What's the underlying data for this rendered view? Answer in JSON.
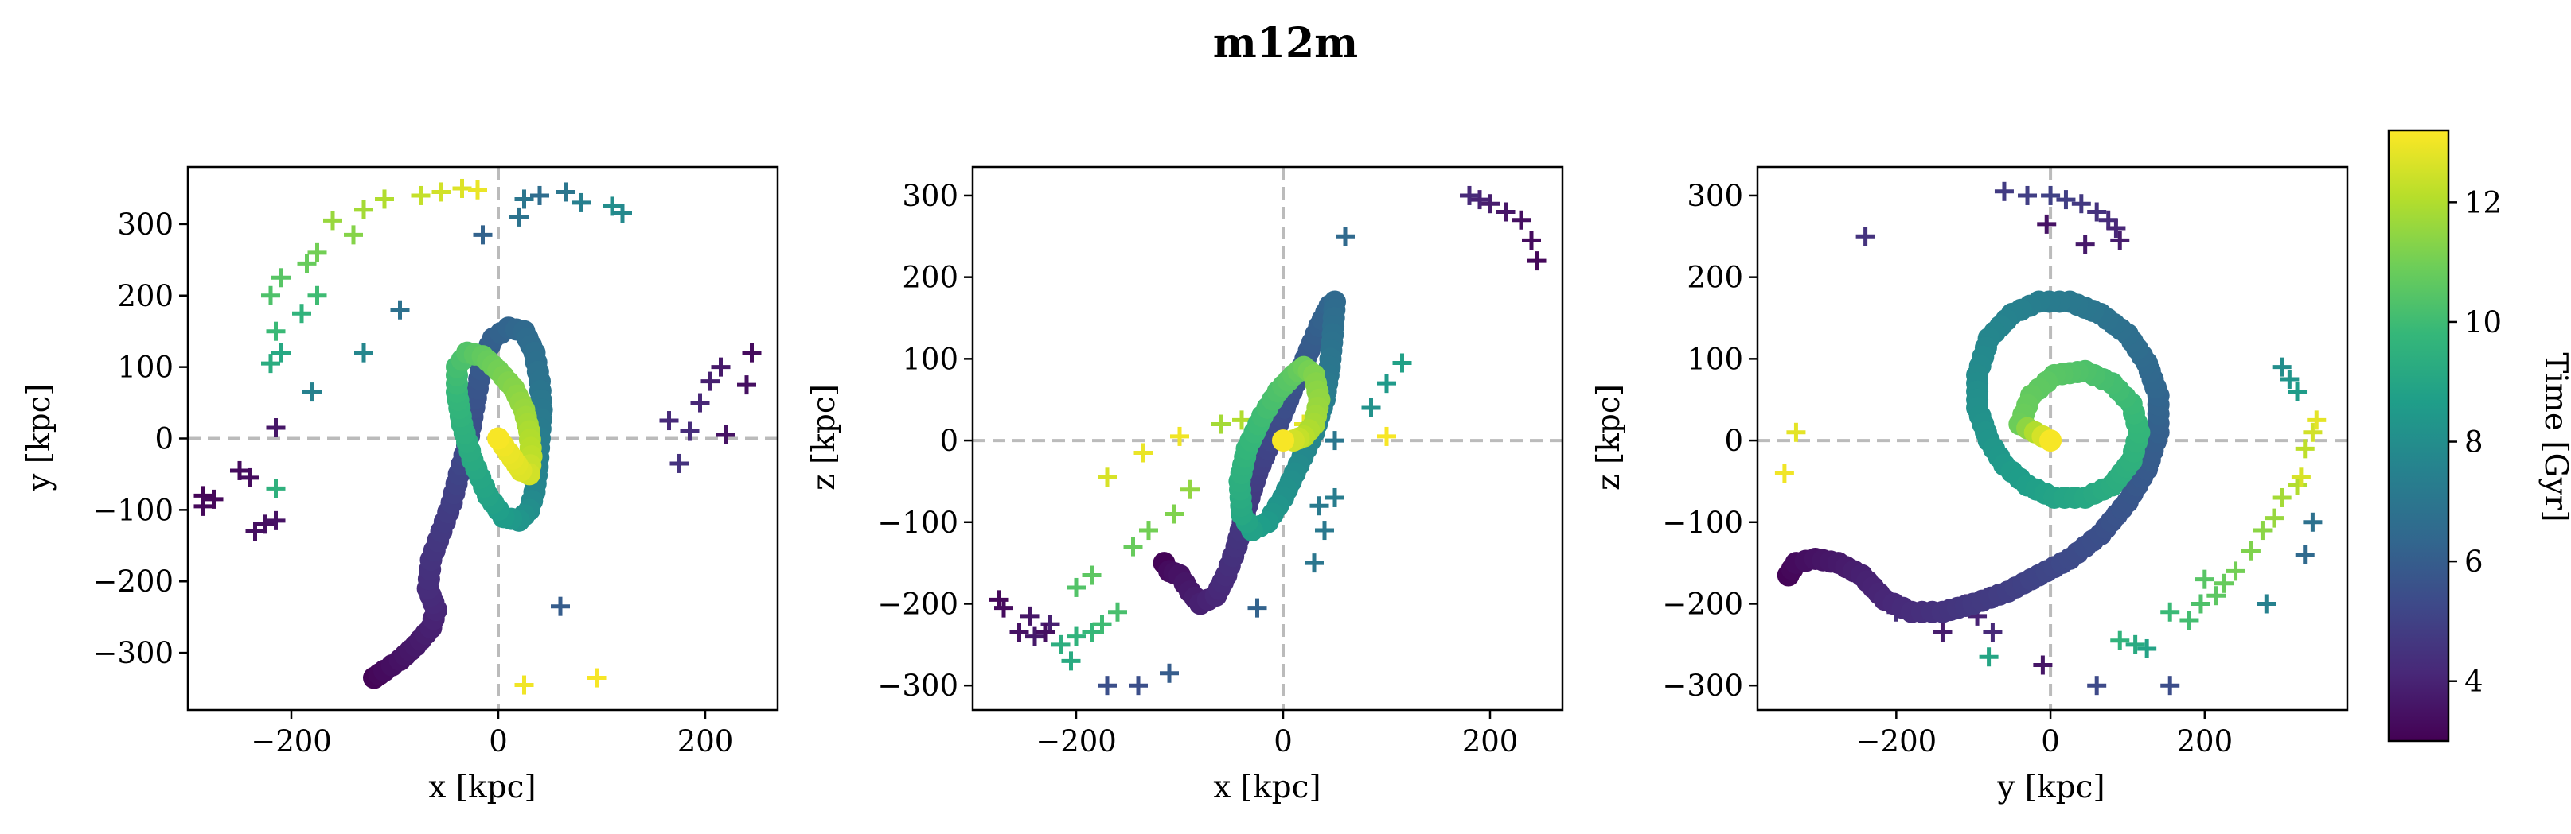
{
  "title": "m12m",
  "colors": {
    "viridis": [
      "#440154",
      "#482878",
      "#3e4989",
      "#31688e",
      "#26828e",
      "#1f9e89",
      "#35b779",
      "#6ece58",
      "#b5de2b",
      "#fde725"
    ],
    "reference_line": "#bbbbbb",
    "axes": "#000000"
  },
  "colorbar": {
    "label": "Time [Gyr]",
    "min": 3.0,
    "max": 13.2,
    "ticks": [
      "4",
      "6",
      "8",
      "10",
      "12"
    ]
  },
  "chart_data": [
    {
      "type": "scatter",
      "panel": "x-y",
      "xlabel": "x [kpc]",
      "ylabel": "y [kpc]",
      "xlim": [
        -300,
        270
      ],
      "ylim": [
        -380,
        380
      ],
      "xticks": [
        "−200",
        "0",
        "200"
      ],
      "yticks": [
        "−300",
        "−200",
        "−100",
        "0",
        "100",
        "200",
        "300"
      ],
      "orbit": [
        [
          -120,
          -335,
          3.1
        ],
        [
          -110,
          -325,
          3.3
        ],
        [
          -95,
          -310,
          3.5
        ],
        [
          -80,
          -290,
          3.7
        ],
        [
          -65,
          -265,
          3.9
        ],
        [
          -60,
          -240,
          4.1
        ],
        [
          -68,
          -210,
          4.3
        ],
        [
          -65,
          -170,
          4.5
        ],
        [
          -55,
          -130,
          4.7
        ],
        [
          -45,
          -90,
          4.9
        ],
        [
          -38,
          -50,
          5.1
        ],
        [
          -30,
          -10,
          5.3
        ],
        [
          -25,
          30,
          5.5
        ],
        [
          -20,
          70,
          5.7
        ],
        [
          -15,
          110,
          5.9
        ],
        [
          -5,
          140,
          6.1
        ],
        [
          10,
          155,
          6.3
        ],
        [
          25,
          150,
          6.5
        ],
        [
          35,
          120,
          6.7
        ],
        [
          40,
          80,
          6.9
        ],
        [
          42,
          40,
          7.1
        ],
        [
          40,
          0,
          7.3
        ],
        [
          38,
          -40,
          7.5
        ],
        [
          35,
          -75,
          7.7
        ],
        [
          30,
          -100,
          8.0
        ],
        [
          20,
          -115,
          8.3
        ],
        [
          5,
          -110,
          8.6
        ],
        [
          -10,
          -80,
          8.9
        ],
        [
          -25,
          -30,
          9.2
        ],
        [
          -35,
          20,
          9.5
        ],
        [
          -40,
          65,
          9.8
        ],
        [
          -40,
          100,
          10.1
        ],
        [
          -30,
          120,
          10.4
        ],
        [
          -15,
          115,
          10.7
        ],
        [
          0,
          95,
          11.0
        ],
        [
          15,
          70,
          11.3
        ],
        [
          25,
          40,
          11.6
        ],
        [
          30,
          10,
          11.9
        ],
        [
          32,
          -25,
          12.2
        ],
        [
          30,
          -50,
          12.5
        ],
        [
          22,
          -45,
          12.7
        ],
        [
          10,
          -20,
          12.9
        ],
        [
          0,
          0,
          13.1
        ]
      ],
      "crosses": [
        [
          -285,
          -80,
          3.1
        ],
        [
          -285,
          -95,
          3.2
        ],
        [
          -275,
          -85,
          3.2
        ],
        [
          -250,
          -45,
          3.3
        ],
        [
          -240,
          -55,
          3.3
        ],
        [
          -235,
          -130,
          3.4
        ],
        [
          -225,
          -120,
          3.4
        ],
        [
          -215,
          -115,
          3.5
        ],
        [
          -215,
          15,
          3.6
        ],
        [
          245,
          120,
          3.3
        ],
        [
          240,
          75,
          3.4
        ],
        [
          220,
          5,
          3.5
        ],
        [
          215,
          100,
          3.7
        ],
        [
          205,
          80,
          3.9
        ],
        [
          195,
          50,
          4.1
        ],
        [
          185,
          10,
          4.3
        ],
        [
          175,
          -35,
          4.5
        ],
        [
          165,
          25,
          4.2
        ],
        [
          -180,
          65,
          7.5
        ],
        [
          -130,
          120,
          7.7
        ],
        [
          -95,
          180,
          6.8
        ],
        [
          -15,
          285,
          6.2
        ],
        [
          20,
          310,
          6.9
        ],
        [
          25,
          335,
          7.0
        ],
        [
          40,
          340,
          6.6
        ],
        [
          65,
          345,
          7.0
        ],
        [
          80,
          330,
          7.4
        ],
        [
          110,
          325,
          8.0
        ],
        [
          120,
          315,
          7.8
        ],
        [
          60,
          -235,
          6.0
        ],
        [
          -215,
          -70,
          9.5
        ],
        [
          -220,
          105,
          9.3
        ],
        [
          -210,
          120,
          9.1
        ],
        [
          -215,
          150,
          9.9
        ],
        [
          -220,
          200,
          10.3
        ],
        [
          -210,
          225,
          10.5
        ],
        [
          -190,
          175,
          9.6
        ],
        [
          -175,
          200,
          10.0
        ],
        [
          -185,
          245,
          10.8
        ],
        [
          -175,
          260,
          11.0
        ],
        [
          -160,
          305,
          11.6
        ],
        [
          -140,
          285,
          11.3
        ],
        [
          -130,
          320,
          11.8
        ],
        [
          -110,
          335,
          12.0
        ],
        [
          -75,
          340,
          12.3
        ],
        [
          -55,
          345,
          12.5
        ],
        [
          -35,
          350,
          12.7
        ],
        [
          -20,
          348,
          12.9
        ],
        [
          25,
          -345,
          13.0
        ],
        [
          95,
          -335,
          13.1
        ]
      ]
    },
    {
      "type": "scatter",
      "panel": "x-z",
      "xlabel": "x [kpc]",
      "ylabel": "z [kpc]",
      "xlim": [
        -300,
        270
      ],
      "ylim": [
        -330,
        335
      ],
      "xticks": [
        "−200",
        "0",
        "200"
      ],
      "yticks": [
        "−300",
        "−200",
        "−100",
        "0",
        "100",
        "200",
        "300"
      ],
      "orbit": [
        [
          -115,
          -150,
          3.1
        ],
        [
          -110,
          -160,
          3.3
        ],
        [
          -100,
          -165,
          3.5
        ],
        [
          -90,
          -185,
          3.7
        ],
        [
          -80,
          -200,
          3.9
        ],
        [
          -65,
          -190,
          4.1
        ],
        [
          -55,
          -165,
          4.3
        ],
        [
          -45,
          -130,
          4.5
        ],
        [
          -35,
          -80,
          4.7
        ],
        [
          -25,
          -40,
          4.9
        ],
        [
          -15,
          -10,
          5.1
        ],
        [
          -5,
          20,
          5.3
        ],
        [
          5,
          50,
          5.5
        ],
        [
          15,
          80,
          5.7
        ],
        [
          25,
          110,
          5.9
        ],
        [
          35,
          140,
          6.1
        ],
        [
          45,
          165,
          6.3
        ],
        [
          50,
          170,
          6.5
        ],
        [
          48,
          130,
          6.8
        ],
        [
          45,
          90,
          7.0
        ],
        [
          40,
          50,
          7.3
        ],
        [
          30,
          10,
          7.6
        ],
        [
          15,
          -30,
          7.9
        ],
        [
          0,
          -70,
          8.2
        ],
        [
          -15,
          -100,
          8.5
        ],
        [
          -30,
          -110,
          8.8
        ],
        [
          -40,
          -90,
          9.1
        ],
        [
          -42,
          -50,
          9.4
        ],
        [
          -35,
          -10,
          9.7
        ],
        [
          -20,
          30,
          10.0
        ],
        [
          -5,
          60,
          10.3
        ],
        [
          10,
          80,
          10.6
        ],
        [
          20,
          90,
          10.9
        ],
        [
          30,
          80,
          11.2
        ],
        [
          35,
          50,
          11.5
        ],
        [
          30,
          20,
          11.8
        ],
        [
          20,
          5,
          12.1
        ],
        [
          10,
          0,
          12.5
        ],
        [
          0,
          0,
          13.1
        ]
      ],
      "crosses": [
        [
          -275,
          -195,
          3.2
        ],
        [
          -270,
          -205,
          3.3
        ],
        [
          -255,
          -235,
          3.5
        ],
        [
          -245,
          -215,
          3.6
        ],
        [
          -240,
          -240,
          3.7
        ],
        [
          -225,
          -225,
          3.9
        ],
        [
          -230,
          -235,
          3.4
        ],
        [
          245,
          220,
          3.2
        ],
        [
          240,
          245,
          3.3
        ],
        [
          230,
          270,
          3.4
        ],
        [
          215,
          280,
          3.6
        ],
        [
          200,
          290,
          3.8
        ],
        [
          190,
          295,
          4.0
        ],
        [
          180,
          300,
          4.2
        ],
        [
          -170,
          -300,
          5.5
        ],
        [
          -140,
          -300,
          5.5
        ],
        [
          -110,
          -285,
          6.0
        ],
        [
          -25,
          -205,
          6.2
        ],
        [
          60,
          250,
          6.5
        ],
        [
          50,
          0,
          7.0
        ],
        [
          40,
          -110,
          7.1
        ],
        [
          35,
          -80,
          7.2
        ],
        [
          50,
          -70,
          7.3
        ],
        [
          30,
          -150,
          7.0
        ],
        [
          85,
          40,
          8.2
        ],
        [
          100,
          70,
          8.5
        ],
        [
          115,
          95,
          8.8
        ],
        [
          -205,
          -270,
          9.2
        ],
        [
          -215,
          -250,
          9.4
        ],
        [
          -200,
          -240,
          9.6
        ],
        [
          -185,
          -235,
          9.8
        ],
        [
          -175,
          -225,
          10.0
        ],
        [
          -160,
          -210,
          10.2
        ],
        [
          -200,
          -180,
          10.4
        ],
        [
          -185,
          -165,
          10.6
        ],
        [
          -145,
          -130,
          10.8
        ],
        [
          -130,
          -110,
          11.0
        ],
        [
          -105,
          -90,
          11.2
        ],
        [
          -90,
          -60,
          11.5
        ],
        [
          -60,
          20,
          11.8
        ],
        [
          -40,
          25,
          12.0
        ],
        [
          -170,
          -45,
          12.6
        ],
        [
          -135,
          -15,
          12.9
        ],
        [
          -100,
          5,
          13.0
        ],
        [
          100,
          5,
          13.1
        ],
        [
          20,
          20,
          12.8
        ]
      ]
    },
    {
      "type": "scatter",
      "panel": "y-z",
      "xlabel": "y [kpc]",
      "ylabel": "z [kpc]",
      "xlim": [
        -380,
        385
      ],
      "ylim": [
        -330,
        335
      ],
      "xticks": [
        "−200",
        "0",
        "200"
      ],
      "yticks": [
        "−300",
        "−200",
        "−100",
        "0",
        "100",
        "200",
        "300"
      ],
      "orbit": [
        [
          -340,
          -165,
          3.1
        ],
        [
          -330,
          -150,
          3.3
        ],
        [
          -305,
          -145,
          3.5
        ],
        [
          -275,
          -150,
          3.7
        ],
        [
          -245,
          -165,
          3.9
        ],
        [
          -215,
          -195,
          4.1
        ],
        [
          -180,
          -210,
          4.3
        ],
        [
          -140,
          -210,
          4.5
        ],
        [
          -100,
          -200,
          4.7
        ],
        [
          -55,
          -185,
          4.9
        ],
        [
          -15,
          -165,
          5.1
        ],
        [
          25,
          -145,
          5.3
        ],
        [
          65,
          -115,
          5.5
        ],
        [
          100,
          -75,
          5.7
        ],
        [
          125,
          -35,
          5.9
        ],
        [
          140,
          10,
          6.1
        ],
        [
          140,
          55,
          6.3
        ],
        [
          125,
          95,
          6.5
        ],
        [
          100,
          130,
          6.7
        ],
        [
          65,
          155,
          6.9
        ],
        [
          25,
          170,
          7.1
        ],
        [
          -15,
          170,
          7.3
        ],
        [
          -50,
          155,
          7.5
        ],
        [
          -80,
          125,
          7.7
        ],
        [
          -95,
          80,
          7.9
        ],
        [
          -95,
          40,
          8.1
        ],
        [
          -80,
          0,
          8.3
        ],
        [
          -60,
          -30,
          8.5
        ],
        [
          -30,
          -55,
          8.7
        ],
        [
          5,
          -70,
          8.9
        ],
        [
          45,
          -70,
          9.1
        ],
        [
          80,
          -55,
          9.3
        ],
        [
          105,
          -25,
          9.5
        ],
        [
          115,
          10,
          9.7
        ],
        [
          105,
          45,
          9.9
        ],
        [
          80,
          70,
          10.1
        ],
        [
          45,
          85,
          10.3
        ],
        [
          5,
          80,
          10.5
        ],
        [
          -25,
          55,
          10.7
        ],
        [
          -40,
          20,
          10.9
        ],
        [
          0,
          0,
          13.1
        ]
      ],
      "crosses": [
        [
          -240,
          250,
          4.5
        ],
        [
          -60,
          305,
          4.8
        ],
        [
          -30,
          300,
          4.9
        ],
        [
          0,
          300,
          5.0
        ],
        [
          20,
          295,
          4.9
        ],
        [
          40,
          290,
          4.7
        ],
        [
          60,
          280,
          4.5
        ],
        [
          75,
          270,
          4.3
        ],
        [
          85,
          260,
          4.1
        ],
        [
          90,
          245,
          3.8
        ],
        [
          45,
          240,
          3.7
        ],
        [
          -5,
          265,
          3.5
        ],
        [
          -110,
          -200,
          3.9
        ],
        [
          -95,
          -215,
          4.0
        ],
        [
          -75,
          -235,
          4.2
        ],
        [
          -140,
          -235,
          3.8
        ],
        [
          -10,
          -275,
          3.6
        ],
        [
          60,
          -300,
          5.3
        ],
        [
          155,
          -300,
          5.4
        ],
        [
          125,
          -255,
          8.9
        ],
        [
          110,
          -250,
          9.2
        ],
        [
          90,
          -245,
          9.6
        ],
        [
          155,
          -210,
          9.9
        ],
        [
          180,
          -220,
          10.1
        ],
        [
          195,
          -200,
          10.3
        ],
        [
          215,
          -190,
          10.6
        ],
        [
          225,
          -175,
          10.8
        ],
        [
          240,
          -160,
          11.0
        ],
        [
          260,
          -135,
          11.2
        ],
        [
          275,
          -110,
          11.4
        ],
        [
          290,
          -95,
          11.6
        ],
        [
          300,
          -70,
          11.8
        ],
        [
          320,
          -55,
          12.0
        ],
        [
          330,
          -10,
          12.2
        ],
        [
          340,
          10,
          12.5
        ],
        [
          345,
          25,
          12.8
        ],
        [
          325,
          -45,
          12.6
        ],
        [
          300,
          90,
          8.0
        ],
        [
          310,
          75,
          8.3
        ],
        [
          320,
          60,
          8.6
        ],
        [
          280,
          -200,
          7.5
        ],
        [
          340,
          -100,
          6.8
        ],
        [
          330,
          -140,
          6.5
        ],
        [
          200,
          -170,
          10.5
        ],
        [
          -330,
          10,
          12.8
        ],
        [
          -345,
          -40,
          13.0
        ],
        [
          -80,
          -265,
          9.0
        ],
        [
          -200,
          -210,
          4.4
        ]
      ]
    }
  ]
}
